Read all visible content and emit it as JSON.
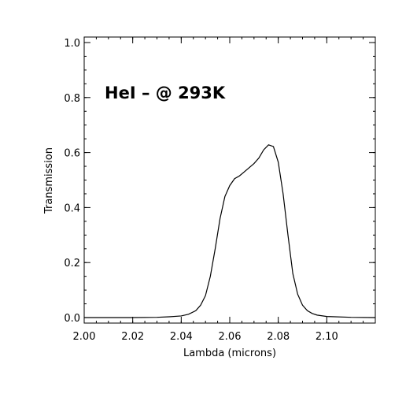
{
  "chart_data": {
    "type": "line",
    "title": "",
    "annotation": "HeI – @ 293K",
    "xlabel": "Lambda (microns)",
    "ylabel": "Transmission",
    "xlim": [
      2.0,
      2.12
    ],
    "ylim": [
      -0.02,
      1.02
    ],
    "x_ticks": [
      2.0,
      2.02,
      2.04,
      2.06,
      2.08,
      2.1
    ],
    "x_tick_labels": [
      "2.00",
      "2.02",
      "2.04",
      "2.06",
      "2.08",
      "2.10"
    ],
    "y_ticks": [
      0.0,
      0.2,
      0.4,
      0.6,
      0.8,
      1.0
    ],
    "y_tick_labels": [
      "0.0",
      "0.2",
      "0.4",
      "0.6",
      "0.8",
      "1.0"
    ],
    "grid": false,
    "series": [
      {
        "x": [
          2.0,
          2.02,
          2.03,
          2.035,
          2.04,
          2.043,
          2.046,
          2.048,
          2.05,
          2.052,
          2.054,
          2.056,
          2.058,
          2.06,
          2.062,
          2.064,
          2.066,
          2.068,
          2.07,
          2.072,
          2.074,
          2.076,
          2.078,
          2.08,
          2.082,
          2.084,
          2.086,
          2.088,
          2.09,
          2.092,
          2.094,
          2.096,
          2.1,
          2.11,
          2.12
        ],
        "y": [
          0.0,
          0.0,
          0.001,
          0.003,
          0.006,
          0.012,
          0.025,
          0.045,
          0.08,
          0.15,
          0.25,
          0.36,
          0.44,
          0.48,
          0.505,
          0.515,
          0.53,
          0.545,
          0.56,
          0.58,
          0.61,
          0.628,
          0.622,
          0.565,
          0.45,
          0.3,
          0.16,
          0.085,
          0.045,
          0.025,
          0.015,
          0.009,
          0.004,
          0.001,
          0.0
        ]
      }
    ]
  }
}
